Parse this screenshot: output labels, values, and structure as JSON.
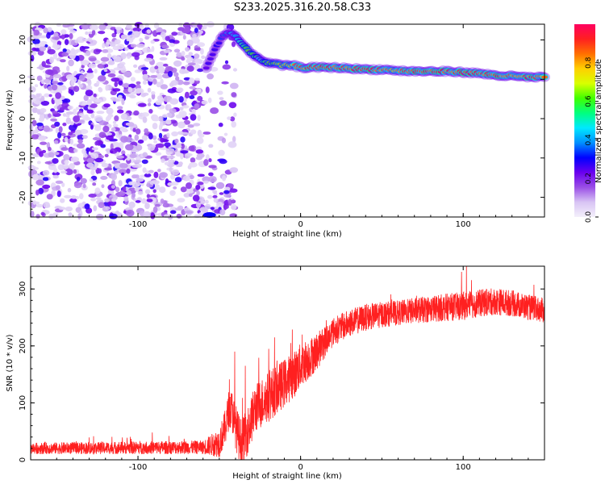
{
  "title": "S233.2025.316.20.58.C33",
  "chart_data": [
    {
      "type": "heatmap",
      "xlabel": "Height of straight line (km)",
      "ylabel": "Frequency (Hz)",
      "xlim": [
        -166,
        150
      ],
      "ylim": [
        -25,
        24
      ],
      "xticks": [
        -100,
        0,
        100
      ],
      "yticks": [
        -20,
        -10,
        0,
        10,
        20
      ],
      "colorbar": {
        "label": "Normalized spectral amplitude",
        "range": [
          0,
          1
        ],
        "ticks": [
          "0.0",
          "0.2",
          "0.4",
          "0.6",
          "0.8"
        ],
        "colors": [
          "#f4f0fb",
          "#d8c4f4",
          "#9a4fe6",
          "#6a00ee",
          "#0000ff",
          "#0090ff",
          "#00e8ff",
          "#00ff80",
          "#40ff00",
          "#d8ff00",
          "#ffd000",
          "#ff7000",
          "#ff2020",
          "#ff0060"
        ]
      },
      "noise_region_km": [
        -166,
        -40
      ],
      "noise_amplitude_range": [
        0.0,
        0.25
      ],
      "signal_ridge": {
        "km": [
          -58,
          -52,
          -48,
          -44,
          -40,
          -36,
          -32,
          -28,
          -24,
          -20,
          -16,
          -12,
          -8,
          -4,
          0,
          10,
          20,
          30,
          40,
          50,
          60,
          70,
          80,
          90,
          100,
          110,
          120,
          130,
          140,
          150
        ],
        "frequency_hz": [
          13,
          18,
          21,
          22,
          21,
          19,
          17,
          16,
          15,
          14,
          14,
          13.5,
          13.5,
          13.5,
          13,
          13,
          13,
          12.8,
          12.5,
          12.5,
          12.2,
          12,
          12,
          12,
          11.8,
          11.5,
          11,
          10.8,
          10.5,
          10.5
        ],
        "amplitude": [
          0.25,
          0.3,
          0.35,
          0.4,
          0.45,
          0.55,
          0.6,
          0.55,
          0.5,
          0.6,
          0.65,
          0.7,
          0.75,
          0.8,
          0.85,
          0.95,
          0.9,
          0.9,
          0.95,
          0.85,
          0.8,
          0.9,
          0.95,
          0.9,
          0.95,
          0.85,
          0.95,
          0.85,
          0.9,
          0.85
        ]
      },
      "spot_low_edge": {
        "km": -56,
        "frequency_hz": -24.5,
        "amplitude": 0.3
      }
    },
    {
      "type": "line",
      "xlabel": "Height of straight line (km)",
      "ylabel": "SNR (10 * v/v)",
      "xlim": [
        -166,
        150
      ],
      "ylim": [
        0,
        340
      ],
      "xticks": [
        -100,
        0,
        100
      ],
      "yticks": [
        0,
        100,
        200,
        300
      ],
      "color": "#ff2020",
      "trend": {
        "km": [
          -166,
          -60,
          -50,
          -46,
          -44,
          -42,
          -40,
          -38,
          -36,
          -32,
          -28,
          -24,
          -20,
          -16,
          -12,
          -8,
          -4,
          0,
          10,
          20,
          30,
          40,
          50,
          60,
          70,
          80,
          90,
          100,
          110,
          120,
          130,
          140,
          150
        ],
        "snr": [
          20,
          22,
          30,
          60,
          90,
          85,
          60,
          40,
          30,
          55,
          90,
          100,
          110,
          120,
          130,
          140,
          150,
          165,
          190,
          225,
          240,
          250,
          255,
          258,
          262,
          265,
          268,
          270,
          275,
          278,
          275,
          268,
          262
        ]
      },
      "noise_band": {
        "km": [
          -166,
          -60,
          -40,
          -20,
          0,
          20,
          60,
          100,
          150
        ],
        "amplitude": [
          10,
          12,
          40,
          45,
          40,
          25,
          22,
          25,
          22
        ]
      },
      "peaks": [
        {
          "km": -40.5,
          "snr": 190
        },
        {
          "km": -34,
          "snr": 165
        },
        {
          "km": -16,
          "snr": 215
        },
        {
          "km": -6,
          "snr": 205
        },
        {
          "km": 1,
          "snr": 220
        },
        {
          "km": 99,
          "snr": 330
        },
        {
          "km": 102,
          "snr": 340
        }
      ]
    }
  ]
}
